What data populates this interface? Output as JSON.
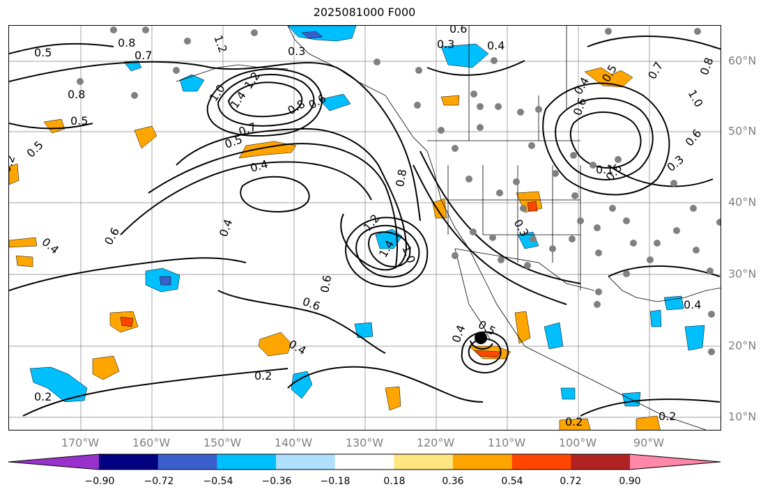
{
  "title": "2025081000 F000",
  "longitude_labels": [
    "170°W",
    "160°W",
    "150°W",
    "140°W",
    "130°W",
    "120°W",
    "110°W",
    "100°W",
    "90°W"
  ],
  "latitude_labels": [
    "60°N",
    "50°N",
    "40°N",
    "30°N",
    "20°N",
    "10°N"
  ],
  "colorbar": {
    "colors": [
      "#9932cc",
      "#000080",
      "#3a5fcd",
      "#00bfff",
      "#b0e0ff",
      "#ffffff",
      "#ffe680",
      "#ffa500",
      "#ff4500",
      "#b22222",
      "#ff88aa"
    ],
    "tick_labels": [
      "−0.90",
      "−0.72",
      "−0.54",
      "−0.36",
      "−0.18",
      "0.18",
      "0.36",
      "0.54",
      "0.72",
      "0.90"
    ],
    "extend": "both"
  },
  "contour_labels": [
    "0.5",
    "0.8",
    "0.7",
    "1.2",
    "0.3",
    "0.6",
    "0.3",
    "0.4",
    "0.8",
    "0.5",
    "1.0",
    "1.4",
    "1.2",
    "0.8",
    "0.5",
    "0.7",
    "0.4",
    "0.5",
    "0.4",
    "0.4",
    "0.6",
    "0.2",
    "1.2",
    "1.4",
    "1.0",
    "0.8",
    "0.6",
    "0.6",
    "0.4",
    "0.2",
    "0.2",
    "0.4",
    "0.5",
    "0.2",
    "0.2",
    "0.5",
    "0.4",
    "0.6",
    "0.7",
    "0.8",
    "1.0",
    "0.6",
    "0.1",
    "0.3",
    "0.4",
    "0.6",
    "0.3",
    "0.6"
  ],
  "colors": {
    "contour": "#000000",
    "gridline": "#808080",
    "axis_label": "#808080",
    "coastline": "#000000",
    "station_marker": "#808080",
    "storm_marker": "#000000"
  }
}
